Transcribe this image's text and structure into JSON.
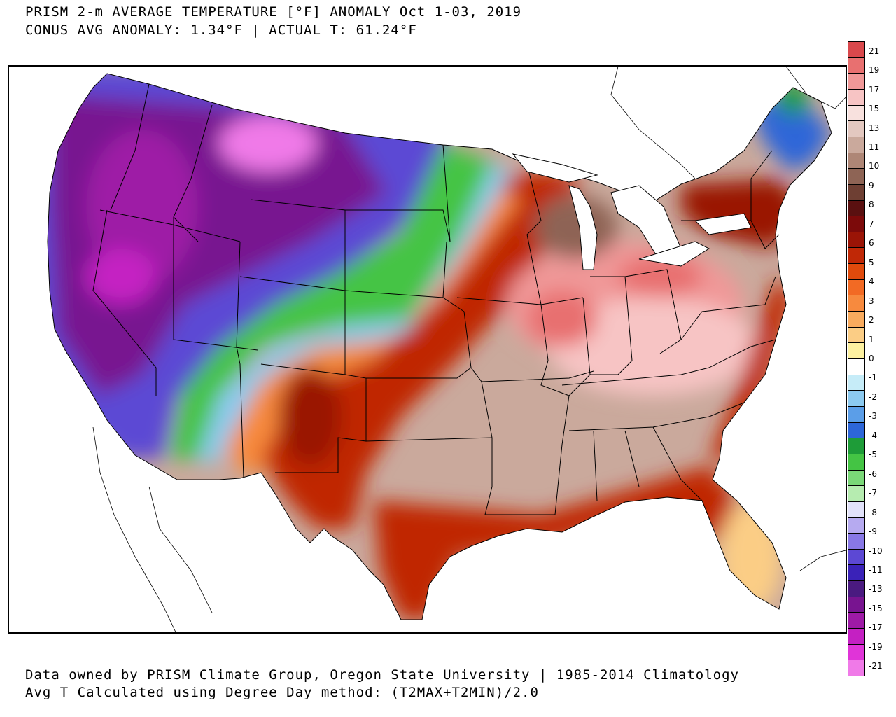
{
  "title": {
    "line1": "PRISM 2-m AVERAGE TEMPERATURE [°F] ANOMALY Oct 1-03, 2019",
    "line2": "CONUS AVG ANOMALY: 1.34°F | ACTUAL T: 61.24°F"
  },
  "footer": {
    "line1": "Data owned by PRISM Climate Group, Oregon State University | 1985-2014 Climatology",
    "line2": "Avg T Calculated using Degree Day method: (T2MAX+T2MIN)/2.0"
  },
  "colorbar": {
    "unit": "°F",
    "labels": [
      "21",
      "19",
      "17",
      "15",
      "13",
      "11",
      "10",
      "9",
      "8",
      "7",
      "6",
      "5",
      "4",
      "3",
      "2",
      "1",
      "0",
      "-1",
      "-2",
      "-3",
      "-4",
      "-5",
      "-6",
      "-7",
      "-8",
      "-9",
      "-10",
      "-11",
      "-13",
      "-15",
      "-17",
      "-19",
      "-21"
    ],
    "colors": [
      "#d9484c",
      "#e87070",
      "#f09898",
      "#f7c4c4",
      "#f8e1de",
      "#e3c8c0",
      "#caa99c",
      "#ae8676",
      "#8e6455",
      "#6e3f33",
      "#5a1010",
      "#7c0a0a",
      "#9a1406",
      "#c02806",
      "#e04a0c",
      "#f26a24",
      "#f78a3e",
      "#f9ab5e",
      "#fbcd85",
      "#fdf1a0",
      "#ffffff",
      "#c6ecf8",
      "#8ccaf0",
      "#5b9ee8",
      "#2d66d8",
      "#1e9c38",
      "#44c444",
      "#7ad878",
      "#b6ecb0",
      "#e2e2fa",
      "#b6aaf0",
      "#8878e6",
      "#5c48d4",
      "#3a22b8",
      "#4a1a80",
      "#781490",
      "#9e1aa6",
      "#c420c2",
      "#e034d8",
      "#f07ae8"
    ]
  },
  "map_regions": [
    {
      "name": "northwest-cold-core",
      "category": "-13 to -21"
    },
    {
      "name": "rockies-cold",
      "category": "-9 to -11"
    },
    {
      "name": "plains-transition",
      "category": "-4 to 0"
    },
    {
      "name": "southern-plains-warm",
      "category": "4 to 8"
    },
    {
      "name": "midwest-east-warm",
      "category": "13 to 19"
    },
    {
      "name": "gulf-coast-warm",
      "category": "6 to 8"
    },
    {
      "name": "florida-mild",
      "category": "1 to 3"
    },
    {
      "name": "maine-cool",
      "category": "-1 to -5"
    }
  ]
}
